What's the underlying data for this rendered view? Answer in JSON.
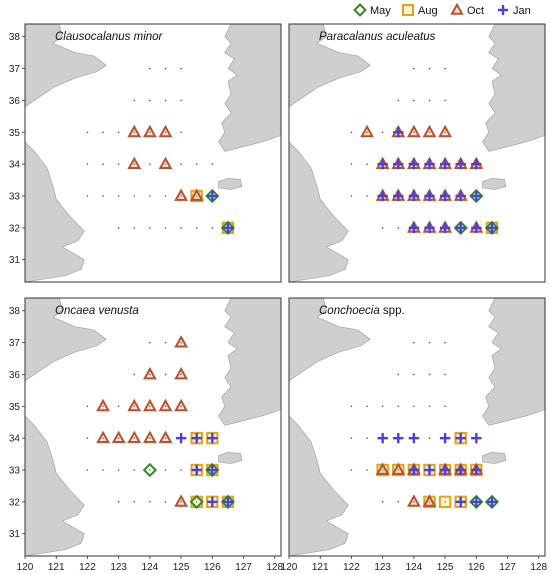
{
  "legend": {
    "items": [
      {
        "key": "may",
        "label": "May",
        "color": "#2e8b22",
        "marker": "diamond"
      },
      {
        "key": "aug",
        "label": "Aug",
        "color": "#e3a21a",
        "marker": "square"
      },
      {
        "key": "oct",
        "label": "Oct",
        "color": "#b5532a",
        "marker": "triangle"
      },
      {
        "key": "jan",
        "label": "Jan",
        "color": "#4a3fe0",
        "marker": "cross"
      }
    ]
  },
  "axes": {
    "x_ticks": [
      "120",
      "121",
      "122",
      "123",
      "124",
      "125",
      "126",
      "127",
      "128"
    ],
    "y_ticks": [
      "31",
      "32",
      "33",
      "34",
      "35",
      "36",
      "37",
      "38"
    ],
    "xlim": [
      120,
      128.2
    ],
    "ylim": [
      30.3,
      38.4
    ]
  },
  "chart_data": [
    {
      "type": "map-scatter",
      "panel": "Clausocalanus minor",
      "title_italic": "Clausocalanus minor",
      "title_plain": "",
      "points": [
        {
          "lon": 123.5,
          "lat": 35,
          "seasons": [
            "oct"
          ]
        },
        {
          "lon": 124,
          "lat": 35,
          "seasons": [
            "oct"
          ]
        },
        {
          "lon": 124.5,
          "lat": 35,
          "seasons": [
            "oct"
          ]
        },
        {
          "lon": 123.5,
          "lat": 34,
          "seasons": [
            "oct"
          ]
        },
        {
          "lon": 124.5,
          "lat": 34,
          "seasons": [
            "oct"
          ]
        },
        {
          "lon": 125,
          "lat": 33,
          "seasons": [
            "oct"
          ]
        },
        {
          "lon": 125.5,
          "lat": 33,
          "seasons": [
            "aug",
            "oct"
          ]
        },
        {
          "lon": 126,
          "lat": 33,
          "seasons": [
            "may",
            "jan"
          ]
        },
        {
          "lon": 126.5,
          "lat": 32,
          "seasons": [
            "may",
            "aug",
            "jan"
          ]
        }
      ]
    },
    {
      "type": "map-scatter",
      "panel": "Paracalanus aculeatus",
      "title_italic": "Paracalanus aculeatus",
      "title_plain": "",
      "points": [
        {
          "lon": 122.5,
          "lat": 35,
          "seasons": [
            "oct"
          ]
        },
        {
          "lon": 123.5,
          "lat": 35,
          "seasons": [
            "oct",
            "jan"
          ]
        },
        {
          "lon": 124,
          "lat": 35,
          "seasons": [
            "oct"
          ]
        },
        {
          "lon": 124.5,
          "lat": 35,
          "seasons": [
            "oct"
          ]
        },
        {
          "lon": 125,
          "lat": 35,
          "seasons": [
            "oct"
          ]
        },
        {
          "lon": 123,
          "lat": 34,
          "seasons": [
            "oct",
            "jan"
          ]
        },
        {
          "lon": 123.5,
          "lat": 34,
          "seasons": [
            "oct",
            "jan"
          ]
        },
        {
          "lon": 124,
          "lat": 34,
          "seasons": [
            "oct",
            "jan"
          ]
        },
        {
          "lon": 124.5,
          "lat": 34,
          "seasons": [
            "oct",
            "jan"
          ]
        },
        {
          "lon": 125,
          "lat": 34,
          "seasons": [
            "oct",
            "jan"
          ]
        },
        {
          "lon": 125.5,
          "lat": 34,
          "seasons": [
            "oct",
            "jan"
          ]
        },
        {
          "lon": 126,
          "lat": 34,
          "seasons": [
            "oct",
            "jan"
          ]
        },
        {
          "lon": 123,
          "lat": 33,
          "seasons": [
            "oct",
            "jan"
          ]
        },
        {
          "lon": 123.5,
          "lat": 33,
          "seasons": [
            "oct",
            "jan"
          ]
        },
        {
          "lon": 124,
          "lat": 33,
          "seasons": [
            "oct",
            "jan"
          ]
        },
        {
          "lon": 124.5,
          "lat": 33,
          "seasons": [
            "oct",
            "jan"
          ]
        },
        {
          "lon": 125,
          "lat": 33,
          "seasons": [
            "oct",
            "jan"
          ]
        },
        {
          "lon": 125.5,
          "lat": 33,
          "seasons": [
            "oct",
            "jan"
          ]
        },
        {
          "lon": 126,
          "lat": 33,
          "seasons": [
            "may",
            "jan"
          ]
        },
        {
          "lon": 124,
          "lat": 32,
          "seasons": [
            "oct",
            "jan"
          ]
        },
        {
          "lon": 124.5,
          "lat": 32,
          "seasons": [
            "oct",
            "jan"
          ]
        },
        {
          "lon": 125,
          "lat": 32,
          "seasons": [
            "oct",
            "jan"
          ]
        },
        {
          "lon": 125.5,
          "lat": 32,
          "seasons": [
            "may",
            "jan"
          ]
        },
        {
          "lon": 126,
          "lat": 32,
          "seasons": [
            "oct",
            "jan"
          ]
        },
        {
          "lon": 126.5,
          "lat": 32,
          "seasons": [
            "may",
            "aug",
            "jan"
          ]
        }
      ]
    },
    {
      "type": "map-scatter",
      "panel": "Oncaea venusta",
      "title_italic": "Oncaea venusta",
      "title_plain": "",
      "points": [
        {
          "lon": 125,
          "lat": 37,
          "seasons": [
            "oct"
          ]
        },
        {
          "lon": 124,
          "lat": 36,
          "seasons": [
            "oct"
          ]
        },
        {
          "lon": 125,
          "lat": 36,
          "seasons": [
            "oct"
          ]
        },
        {
          "lon": 122.5,
          "lat": 35,
          "seasons": [
            "oct"
          ]
        },
        {
          "lon": 123.5,
          "lat": 35,
          "seasons": [
            "oct"
          ]
        },
        {
          "lon": 124,
          "lat": 35,
          "seasons": [
            "oct"
          ]
        },
        {
          "lon": 124.5,
          "lat": 35,
          "seasons": [
            "oct"
          ]
        },
        {
          "lon": 125,
          "lat": 35,
          "seasons": [
            "oct"
          ]
        },
        {
          "lon": 122.5,
          "lat": 34,
          "seasons": [
            "oct"
          ]
        },
        {
          "lon": 123,
          "lat": 34,
          "seasons": [
            "oct"
          ]
        },
        {
          "lon": 123.5,
          "lat": 34,
          "seasons": [
            "oct"
          ]
        },
        {
          "lon": 124,
          "lat": 34,
          "seasons": [
            "oct"
          ]
        },
        {
          "lon": 124.5,
          "lat": 34,
          "seasons": [
            "oct"
          ]
        },
        {
          "lon": 125,
          "lat": 34,
          "seasons": [
            "jan"
          ]
        },
        {
          "lon": 125.5,
          "lat": 34,
          "seasons": [
            "aug",
            "jan"
          ]
        },
        {
          "lon": 126,
          "lat": 34,
          "seasons": [
            "aug",
            "jan"
          ]
        },
        {
          "lon": 124,
          "lat": 33,
          "seasons": [
            "may"
          ]
        },
        {
          "lon": 125.5,
          "lat": 33,
          "seasons": [
            "aug",
            "jan"
          ]
        },
        {
          "lon": 126,
          "lat": 33,
          "seasons": [
            "may",
            "aug",
            "jan"
          ]
        },
        {
          "lon": 125,
          "lat": 32,
          "seasons": [
            "oct"
          ]
        },
        {
          "lon": 125.5,
          "lat": 32,
          "seasons": [
            "may",
            "aug"
          ]
        },
        {
          "lon": 126,
          "lat": 32,
          "seasons": [
            "aug",
            "jan"
          ]
        },
        {
          "lon": 126.5,
          "lat": 32,
          "seasons": [
            "may",
            "aug",
            "jan"
          ]
        }
      ]
    },
    {
      "type": "map-scatter",
      "panel": "Conchoecia spp.",
      "title_italic": "Conchoecia",
      "title_plain": " spp.",
      "points": [
        {
          "lon": 123,
          "lat": 34,
          "seasons": [
            "jan"
          ]
        },
        {
          "lon": 123.5,
          "lat": 34,
          "seasons": [
            "jan"
          ]
        },
        {
          "lon": 124,
          "lat": 34,
          "seasons": [
            "jan"
          ]
        },
        {
          "lon": 125,
          "lat": 34,
          "seasons": [
            "jan"
          ]
        },
        {
          "lon": 125.5,
          "lat": 34,
          "seasons": [
            "aug",
            "jan"
          ]
        },
        {
          "lon": 126,
          "lat": 34,
          "seasons": [
            "jan"
          ]
        },
        {
          "lon": 123,
          "lat": 33,
          "seasons": [
            "aug",
            "oct"
          ]
        },
        {
          "lon": 123.5,
          "lat": 33,
          "seasons": [
            "aug",
            "oct"
          ]
        },
        {
          "lon": 124,
          "lat": 33,
          "seasons": [
            "aug",
            "oct",
            "jan"
          ]
        },
        {
          "lon": 124.5,
          "lat": 33,
          "seasons": [
            "aug",
            "jan"
          ]
        },
        {
          "lon": 125,
          "lat": 33,
          "seasons": [
            "aug",
            "oct",
            "jan"
          ]
        },
        {
          "lon": 125.5,
          "lat": 33,
          "seasons": [
            "aug",
            "oct",
            "jan"
          ]
        },
        {
          "lon": 126,
          "lat": 33,
          "seasons": [
            "aug",
            "oct",
            "jan"
          ]
        },
        {
          "lon": 124,
          "lat": 32,
          "seasons": [
            "oct"
          ]
        },
        {
          "lon": 124.5,
          "lat": 32,
          "seasons": [
            "aug",
            "oct"
          ]
        },
        {
          "lon": 125,
          "lat": 32,
          "seasons": [
            "aug"
          ]
        },
        {
          "lon": 125.5,
          "lat": 32,
          "seasons": [
            "aug",
            "jan"
          ]
        },
        {
          "lon": 126,
          "lat": 32,
          "seasons": [
            "may",
            "jan"
          ]
        },
        {
          "lon": 126.5,
          "lat": 32,
          "seasons": [
            "may",
            "jan"
          ]
        }
      ]
    }
  ],
  "stations": [
    [
      122,
      35
    ],
    [
      122.5,
      35
    ],
    [
      123,
      35
    ],
    [
      123.5,
      35
    ],
    [
      124,
      35
    ],
    [
      124.5,
      35
    ],
    [
      125,
      35
    ],
    [
      122,
      34
    ],
    [
      122.5,
      34
    ],
    [
      123,
      34
    ],
    [
      123.5,
      34
    ],
    [
      124,
      34
    ],
    [
      124.5,
      34
    ],
    [
      125,
      34
    ],
    [
      125.5,
      34
    ],
    [
      126,
      34
    ],
    [
      122,
      33
    ],
    [
      122.5,
      33
    ],
    [
      123,
      33
    ],
    [
      123.5,
      33
    ],
    [
      124,
      33
    ],
    [
      124.5,
      33
    ],
    [
      125,
      33
    ],
    [
      125.5,
      33
    ],
    [
      126,
      33
    ],
    [
      123,
      32
    ],
    [
      123.5,
      32
    ],
    [
      124,
      32
    ],
    [
      124.5,
      32
    ],
    [
      125,
      32
    ],
    [
      125.5,
      32
    ],
    [
      126,
      32
    ],
    [
      126.5,
      32
    ],
    [
      123.5,
      36
    ],
    [
      124,
      36
    ],
    [
      124.5,
      36
    ],
    [
      125,
      36
    ],
    [
      124,
      37
    ],
    [
      124.5,
      37
    ],
    [
      125,
      37
    ]
  ]
}
